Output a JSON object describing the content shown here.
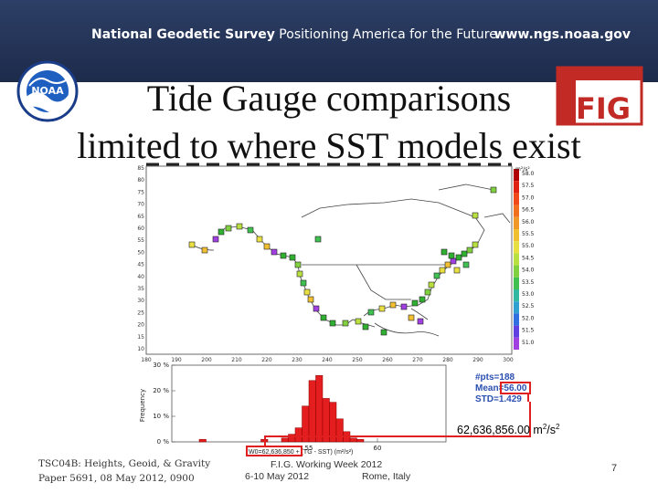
{
  "header": {
    "org_bold": "National Geodetic Survey",
    "org_tagline": " Positioning America for the Future",
    "url": "www.ngs.noaa.gov"
  },
  "logos": {
    "noaa_text": "NOAA",
    "fig_text": "FIG"
  },
  "title": {
    "line1": "Tide Gauge comparisons",
    "line2": "limited to where SST models exist"
  },
  "map": {
    "colorbar_unit": "m²/s²",
    "colorbar_ticks": [
      "58.0",
      "57.5",
      "57.0",
      "56.5",
      "56.0",
      "55.5",
      "55.0",
      "54.5",
      "54.0",
      "53.5",
      "53.0",
      "52.5",
      "52.0",
      "51.5",
      "51.0"
    ],
    "lat_ticks": [
      "85",
      "80",
      "75",
      "70",
      "65",
      "60",
      "55",
      "50",
      "45",
      "40",
      "35",
      "30",
      "25",
      "20",
      "15",
      "10"
    ],
    "lon_ticks": [
      "180",
      "190",
      "200",
      "210",
      "220",
      "230",
      "240",
      "250",
      "260",
      "270",
      "280",
      "290",
      "300"
    ]
  },
  "chart_data": {
    "type": "bar",
    "ylabel": "Frequency",
    "xlabel": "W0=62,636,850 + (TG - SST) (m²/s²)",
    "y_ticks": [
      "30 %",
      "20 %",
      "10 %",
      "0 %"
    ],
    "x_ticks": [
      "55",
      "60"
    ],
    "xlim": [
      45,
      65
    ],
    "ylim": [
      0,
      30
    ],
    "bins": [
      {
        "x": 47.0,
        "value": 1.0
      },
      {
        "x": 51.5,
        "value": 1.0
      },
      {
        "x": 53.0,
        "value": 1.5
      },
      {
        "x": 53.5,
        "value": 3.0
      },
      {
        "x": 54.0,
        "value": 5.5
      },
      {
        "x": 54.5,
        "value": 14.0
      },
      {
        "x": 55.0,
        "value": 24.0
      },
      {
        "x": 55.5,
        "value": 26.0
      },
      {
        "x": 56.0,
        "value": 17.0
      },
      {
        "x": 56.5,
        "value": 15.5
      },
      {
        "x": 57.0,
        "value": 9.0
      },
      {
        "x": 57.5,
        "value": 4.0
      },
      {
        "x": 58.0,
        "value": 1.5
      },
      {
        "x": 58.5,
        "value": 1.0
      }
    ]
  },
  "stats": {
    "pts": "#pts=188",
    "mean": "Mean=56.00",
    "std": "STD=1.429"
  },
  "result": {
    "value": "62,636,856.00 m",
    "unit_sup1": "2",
    "unit_mid": "/s",
    "unit_sup2": "2"
  },
  "footer": {
    "left_line1": "TSC04B: Heights, Geoid, & Gravity",
    "left_line2": "Paper 5691, 08 May 2012, 0900",
    "mid_line1": "F.I.G. Working Week 2012",
    "mid_dates": "6-10 May 2012",
    "mid_place": "Rome, Italy",
    "page": "7"
  },
  "colors": {
    "banner": "#1d2b4b",
    "bar": "#e41e1e",
    "highlight": "#e02020"
  }
}
